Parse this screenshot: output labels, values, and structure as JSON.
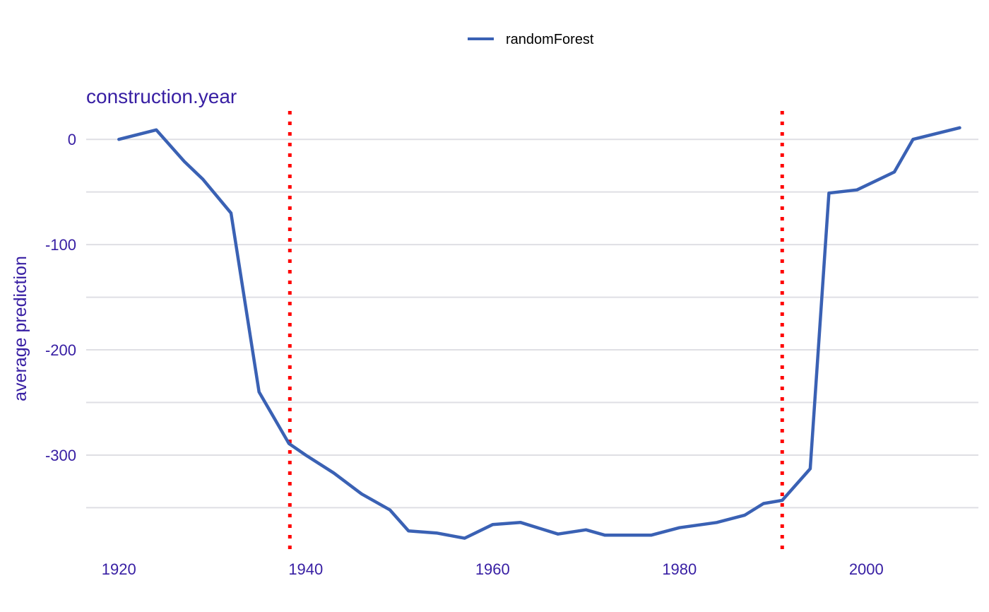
{
  "chart_data": {
    "type": "line",
    "title": "construction.year",
    "xlabel": "",
    "ylabel": "average prediction",
    "xlim": [
      1916.5,
      2012
    ],
    "ylim": [
      -390,
      27
    ],
    "x_ticks": [
      1920,
      1940,
      1960,
      1980,
      2000
    ],
    "x_tick_labels": [
      "1920",
      "1940",
      "1960",
      "1980",
      "2000"
    ],
    "y_ticks": [
      0,
      -100,
      -200,
      -300
    ],
    "y_tick_labels": [
      "0",
      "-100",
      "-200",
      "-300"
    ],
    "y_gridlines": [
      0,
      -50,
      -100,
      -150,
      -200,
      -250,
      -300,
      -350
    ],
    "grid": true,
    "legend_position": "top",
    "reference_lines": [
      {
        "orientation": "vertical",
        "x": 1938.3,
        "color": "#ff0000",
        "style": "dotted"
      },
      {
        "orientation": "vertical",
        "x": 1991,
        "color": "#ff0000",
        "style": "dotted"
      }
    ],
    "series": [
      {
        "name": "randomForest",
        "color": "#3a61b4",
        "x": [
          1920,
          1924,
          1927,
          1929,
          1932,
          1935,
          1938.2,
          1940,
          1943,
          1946,
          1949,
          1951,
          1954,
          1957,
          1960,
          1963,
          1967,
          1970,
          1972,
          1977,
          1980,
          1984,
          1987,
          1989,
          1991,
          1994,
          1996,
          1999,
          2003,
          2005,
          2010
        ],
        "y": [
          0,
          9,
          -21,
          -38,
          -70,
          -240,
          -289,
          -300,
          -317,
          -337,
          -352,
          -372,
          -374,
          -379,
          -366,
          -364,
          -375,
          -371,
          -376,
          -376,
          -369,
          -364,
          -357,
          -346,
          -343,
          -313,
          -51,
          -48,
          -31,
          0,
          11
        ]
      }
    ]
  }
}
